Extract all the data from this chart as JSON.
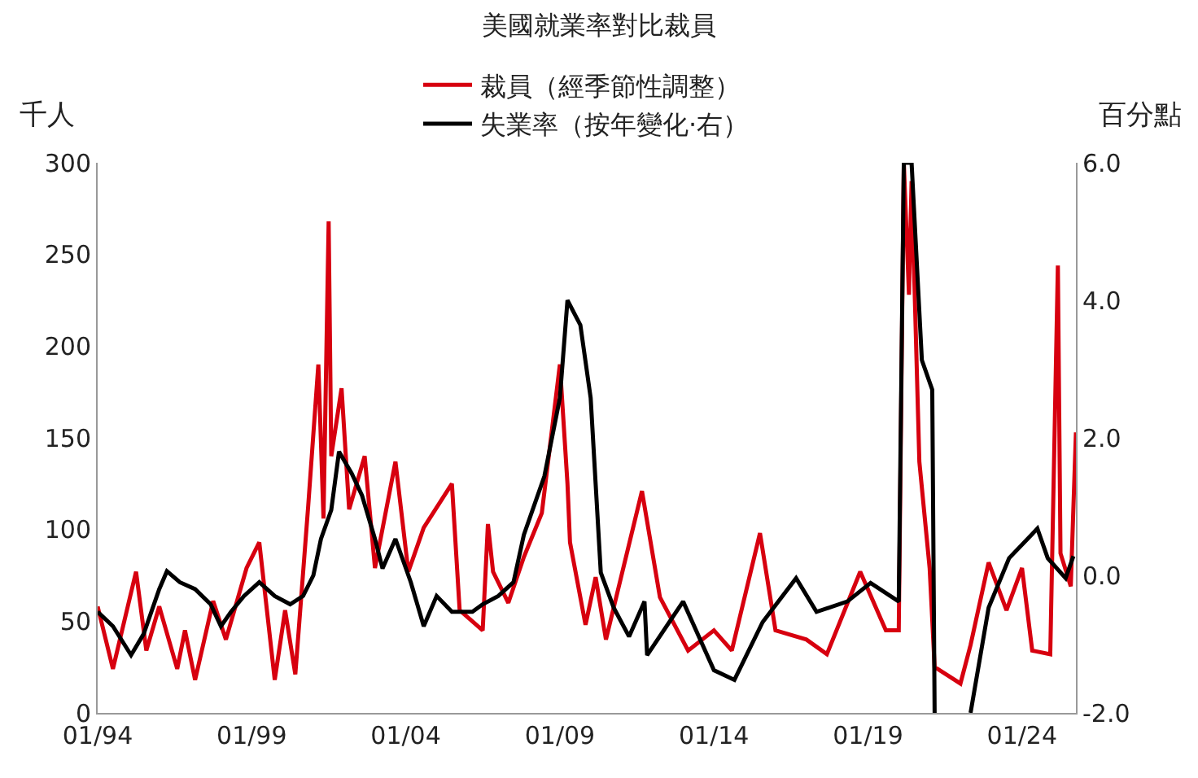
{
  "chart_data": {
    "type": "line",
    "title": "美國就業率對比裁員",
    "ylabel": "千人",
    "y2label": "百分點",
    "xlim": [
      "1994-01",
      "2025-10"
    ],
    "xticks": [
      {
        "value": "1994-01",
        "label": "01/94"
      },
      {
        "value": "1999-01",
        "label": "01/99"
      },
      {
        "value": "2004-01",
        "label": "01/04"
      },
      {
        "value": "2009-01",
        "label": "01/09"
      },
      {
        "value": "2014-01",
        "label": "01/14"
      },
      {
        "value": "2019-01",
        "label": "01/19"
      },
      {
        "value": "2024-01",
        "label": "01/24"
      }
    ],
    "ylim": [
      0,
      300
    ],
    "yticks": [
      0,
      50,
      100,
      150,
      200,
      250,
      300
    ],
    "y2lim": [
      -2.0,
      6.0
    ],
    "y2ticks": [
      {
        "value": -2,
        "label": "-2.0"
      },
      {
        "value": 0,
        "label": "0.0"
      },
      {
        "value": 2,
        "label": "2.0"
      },
      {
        "value": 4,
        "label": "4.0"
      },
      {
        "value": 6,
        "label": "6.0"
      }
    ],
    "legend": "top",
    "marker": "none",
    "line_style": "solid",
    "series": [
      {
        "name": "裁員（經季節性調整）",
        "color": "#d7000f",
        "axis": "y",
        "x": [
          "1994-01",
          "1994-07",
          "1995-04",
          "1995-08",
          "1996-01",
          "1996-08",
          "1996-11",
          "1997-03",
          "1997-10",
          "1998-03",
          "1998-11",
          "1999-04",
          "1999-10",
          "2000-02",
          "2000-06",
          "2000-11",
          "2001-03",
          "2001-05",
          "2001-07",
          "2001-08",
          "2001-12",
          "2002-03",
          "2002-09",
          "2003-01",
          "2003-09",
          "2004-02",
          "2004-08",
          "2005-07",
          "2005-10",
          "2006-07",
          "2006-09",
          "2006-11",
          "2007-05",
          "2007-11",
          "2008-06",
          "2009-01",
          "2009-04",
          "2009-05",
          "2009-11",
          "2010-03",
          "2010-07",
          "2011-09",
          "2012-04",
          "2013-03",
          "2014-01",
          "2014-08",
          "2015-07",
          "2016-01",
          "2017-01",
          "2017-09",
          "2018-10",
          "2019-08",
          "2020-01",
          "2020-03",
          "2020-05",
          "2020-06",
          "2020-09",
          "2021-01",
          "2021-03",
          "2022-01",
          "2022-05",
          "2022-12",
          "2023-07",
          "2024-01",
          "2024-05",
          "2024-12",
          "2025-03",
          "2025-04",
          "2025-08",
          "2025-10"
        ],
        "values": [
          58,
          24,
          77,
          34,
          58,
          24,
          45,
          18,
          61,
          40,
          79,
          93,
          18,
          56,
          21,
          113,
          190,
          106,
          268,
          140,
          177,
          111,
          140,
          79,
          137,
          77,
          101,
          125,
          56,
          45,
          103,
          77,
          60,
          85,
          109,
          190,
          125,
          93,
          48,
          74,
          40,
          121,
          63,
          34,
          45,
          34,
          98,
          45,
          40,
          32,
          77,
          45,
          45,
          300,
          228,
          290,
          137,
          79,
          25,
          16,
          37,
          82,
          56,
          79,
          34,
          32,
          244,
          87,
          69,
          153
        ]
      },
      {
        "name": "失業率（按年變化·右）",
        "color": "#000000",
        "axis": "y2",
        "x": [
          "1994-01",
          "1994-07",
          "1995-02",
          "1995-07",
          "1996-01",
          "1996-04",
          "1996-09",
          "1997-03",
          "1997-09",
          "1998-01",
          "1998-05",
          "1998-10",
          "1999-04",
          "1999-10",
          "2000-04",
          "2000-09",
          "2001-01",
          "2001-04",
          "2001-08",
          "2001-11",
          "2002-04",
          "2002-08",
          "2003-01",
          "2003-04",
          "2003-09",
          "2004-03",
          "2004-08",
          "2005-01",
          "2005-07",
          "2006-03",
          "2006-07",
          "2007-01",
          "2007-07",
          "2007-11",
          "2008-07",
          "2009-01",
          "2009-04",
          "2009-09",
          "2010-01",
          "2010-05",
          "2010-10",
          "2011-04",
          "2011-10",
          "2011-11",
          "2013-01",
          "2014-01",
          "2014-09",
          "2015-08",
          "2016-09",
          "2017-05",
          "2018-05",
          "2019-02",
          "2020-01",
          "2020-03",
          "2020-06",
          "2020-10",
          "2021-02",
          "2021-03",
          "2021-10",
          "2022-05",
          "2022-12",
          "2023-08",
          "2024-07",
          "2024-11",
          "2025-06",
          "2025-09"
        ],
        "values": [
          -0.53,
          -0.74,
          -1.16,
          -0.85,
          -0.2,
          0.06,
          -0.1,
          -0.2,
          -0.42,
          -0.74,
          -0.53,
          -0.3,
          -0.1,
          -0.3,
          -0.42,
          -0.3,
          0.0,
          0.53,
          0.95,
          1.8,
          1.48,
          1.16,
          0.53,
          0.1,
          0.53,
          -0.1,
          -0.74,
          -0.3,
          -0.53,
          -0.53,
          -0.42,
          -0.3,
          -0.1,
          0.59,
          1.44,
          2.58,
          4.0,
          3.64,
          2.58,
          0.04,
          -0.47,
          -0.89,
          -0.38,
          -1.16,
          -0.38,
          -1.38,
          -1.52,
          -0.68,
          -0.04,
          -0.53,
          -0.38,
          -0.11,
          -0.38,
          6.0,
          6.0,
          3.13,
          2.7,
          -2.0,
          null,
          -2.0,
          -0.47,
          0.25,
          0.68,
          0.25,
          -0.04,
          0.28
        ]
      }
    ]
  }
}
